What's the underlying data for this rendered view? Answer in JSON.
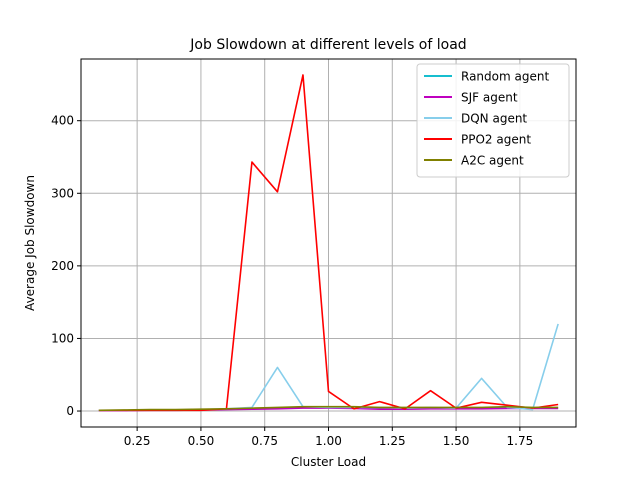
{
  "chart_data": {
    "type": "line",
    "title": "Job Slowdown at different levels of load",
    "xlabel": "Cluster Load",
    "ylabel": "Average Job Slowdown",
    "xlim": [
      0.03,
      1.97
    ],
    "ylim": [
      -22,
      485
    ],
    "xticks": [
      0.25,
      0.5,
      0.75,
      1.0,
      1.25,
      1.5,
      1.75
    ],
    "xtick_labels": [
      "0.25",
      "0.50",
      "0.75",
      "1.00",
      "1.25",
      "1.50",
      "1.75"
    ],
    "yticks": [
      0,
      100,
      200,
      300,
      400
    ],
    "ytick_labels": [
      "0",
      "100",
      "200",
      "300",
      "400"
    ],
    "grid": true,
    "legend_position": "top-right",
    "x": [
      0.1,
      0.2,
      0.3,
      0.4,
      0.5,
      0.6,
      0.7,
      0.8,
      0.9,
      1.0,
      1.1,
      1.2,
      1.3,
      1.4,
      1.5,
      1.6,
      1.7,
      1.8,
      1.9
    ],
    "series": [
      {
        "name": "Random agent",
        "color": "#17becf",
        "values": [
          1,
          1,
          1.5,
          1.5,
          2,
          2.5,
          3,
          4,
          5,
          5,
          5,
          4.5,
          4.5,
          4.5,
          4.5,
          4.5,
          5,
          4.5,
          4.5
        ]
      },
      {
        "name": "SJF agent",
        "color": "#bf00bf",
        "values": [
          0.5,
          0.5,
          1,
          1,
          1.5,
          2,
          2.5,
          3,
          4,
          4,
          3.5,
          2.5,
          2.5,
          3,
          3,
          3,
          3.5,
          3.5,
          3.5
        ]
      },
      {
        "name": "DQN agent",
        "color": "#87ceeb",
        "values": [
          1,
          1,
          1.5,
          1.5,
          2,
          3,
          5,
          60,
          6,
          5,
          5,
          5,
          4,
          5,
          4,
          45,
          5,
          2,
          120
        ]
      },
      {
        "name": "PPO2 agent",
        "color": "#ff0000",
        "values": [
          1,
          1,
          1,
          1,
          1,
          3,
          343,
          302,
          463,
          27,
          3,
          13,
          3,
          28,
          4,
          12,
          8,
          4,
          9
        ]
      },
      {
        "name": "A2C agent",
        "color": "#808000",
        "values": [
          1,
          1.5,
          2,
          2,
          2.5,
          3,
          4,
          5,
          6,
          6,
          6,
          5,
          5,
          5,
          5,
          5,
          6,
          5,
          5
        ]
      }
    ]
  }
}
